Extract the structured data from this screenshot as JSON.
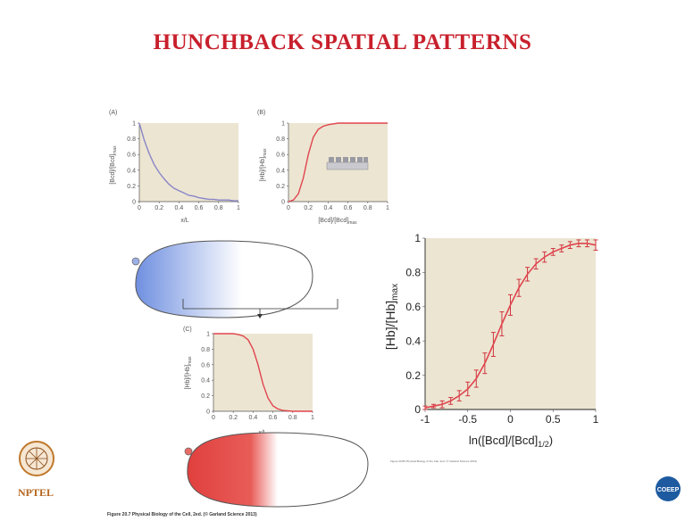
{
  "slide": {
    "title": "HUNCHBACK SPATIAL PATTERNS",
    "figure_caption": "Figure 20.7 Physical Biology of the Cell, 2ed. (© Garland Science 2013)",
    "small_caption": "Figure 20.8b Physical Biology of the Cell, 2ed. (© Garland Science 2013)",
    "logo_left_text": "NPTEL",
    "logo_right_text": "COEEP",
    "colors": {
      "title": "#c8202c",
      "panel_bg": "#ece5d2",
      "red_curve": "#e0454e",
      "blue_curve": "#8a86c8"
    }
  },
  "chart_data": [
    {
      "type": "line",
      "panel_label": "(A)",
      "xlabel": "x/L",
      "ylabel": "[Bcd]/[Bcd]max",
      "ylabel_main": "[Bcd]/[Bcd]",
      "ylabel_sub": "max",
      "xlim": [
        0,
        1
      ],
      "ylim": [
        0,
        1
      ],
      "xticks": [
        "0",
        "0.2",
        "0.4",
        "0.6",
        "0.8",
        "1"
      ],
      "yticks": [
        "0",
        "0.2",
        "0.4",
        "0.6",
        "0.8",
        "1"
      ],
      "series": [
        {
          "x": [
            0,
            0.05,
            0.1,
            0.15,
            0.2,
            0.25,
            0.3,
            0.35,
            0.4,
            0.45,
            0.5,
            0.55,
            0.6,
            0.65,
            0.7,
            0.75,
            0.8,
            0.85,
            0.9,
            0.95,
            1.0
          ],
          "y": [
            1.0,
            0.78,
            0.61,
            0.47,
            0.37,
            0.29,
            0.22,
            0.17,
            0.14,
            0.11,
            0.08,
            0.07,
            0.05,
            0.04,
            0.03,
            0.03,
            0.02,
            0.02,
            0.02,
            0.01,
            0.01
          ]
        }
      ]
    },
    {
      "type": "line",
      "panel_label": "(B)",
      "xlabel": "[Bcd]/[Bcd]max",
      "xlabel_main": "[Bcd]/[Bcd]",
      "xlabel_sub": "max",
      "ylabel": "[Hb]/[Hb]max",
      "ylabel_main": "[Hb]/[Hb]",
      "ylabel_sub": "max",
      "xlim": [
        0,
        1
      ],
      "ylim": [
        0,
        1
      ],
      "xticks": [
        "0",
        "0.2",
        "0.4",
        "0.6",
        "0.8",
        "1"
      ],
      "yticks": [
        "0",
        "0.2",
        "0.4",
        "0.6",
        "0.8",
        "1"
      ],
      "series": [
        {
          "x": [
            0,
            0.05,
            0.1,
            0.15,
            0.2,
            0.25,
            0.3,
            0.35,
            0.4,
            0.45,
            0.5,
            0.6,
            0.7,
            0.8,
            0.9,
            1.0
          ],
          "y": [
            0.0,
            0.02,
            0.1,
            0.3,
            0.6,
            0.82,
            0.92,
            0.96,
            0.98,
            0.99,
            1.0,
            1.0,
            1.0,
            1.0,
            1.0,
            1.0
          ]
        }
      ]
    },
    {
      "type": "line",
      "panel_label": "(C)",
      "xlabel": "x/L",
      "ylabel": "[Hb]/[Hb]max",
      "ylabel_main": "[Hb]/[Hb]",
      "ylabel_sub": "max",
      "xlim": [
        0,
        1
      ],
      "ylim": [
        0,
        1
      ],
      "xticks": [
        "0",
        "0.2",
        "0.4",
        "0.6",
        "0.8",
        "1"
      ],
      "yticks": [
        "0",
        "0.2",
        "0.4",
        "0.6",
        "0.8",
        "1"
      ],
      "series": [
        {
          "x": [
            0,
            0.1,
            0.2,
            0.25,
            0.3,
            0.35,
            0.4,
            0.45,
            0.5,
            0.55,
            0.6,
            0.65,
            0.7,
            0.8,
            0.9,
            1.0
          ],
          "y": [
            1.0,
            1.0,
            1.0,
            0.99,
            0.97,
            0.92,
            0.8,
            0.6,
            0.35,
            0.17,
            0.07,
            0.03,
            0.01,
            0.0,
            0.0,
            0.0
          ]
        }
      ]
    },
    {
      "type": "line",
      "xlabel": "ln([Bcd]/[Bcd]1/2)",
      "xlabel_main": "ln([Bcd]/[Bcd]",
      "xlabel_sub": "1/2",
      "xlabel_end": ")",
      "ylabel": "[Hb]/[Hb]max",
      "ylabel_main": "[Hb]/[Hb]",
      "ylabel_sub": "max",
      "xlim": [
        -1,
        1
      ],
      "ylim": [
        0,
        1
      ],
      "xticks": [
        "-1",
        "-0.5",
        "0",
        "0.5",
        "1"
      ],
      "yticks": [
        "0",
        "0.2",
        "0.4",
        "0.6",
        "0.8",
        "1"
      ],
      "series": [
        {
          "x": [
            -1,
            -0.9,
            -0.8,
            -0.7,
            -0.6,
            -0.5,
            -0.4,
            -0.3,
            -0.2,
            -0.1,
            0,
            0.1,
            0.2,
            0.3,
            0.4,
            0.5,
            0.6,
            0.7,
            0.8,
            0.9,
            1
          ],
          "y": [
            0.01,
            0.02,
            0.03,
            0.05,
            0.08,
            0.12,
            0.18,
            0.27,
            0.38,
            0.5,
            0.61,
            0.71,
            0.79,
            0.85,
            0.89,
            0.92,
            0.94,
            0.96,
            0.97,
            0.97,
            0.96
          ],
          "err": [
            0.01,
            0.01,
            0.02,
            0.02,
            0.03,
            0.04,
            0.05,
            0.06,
            0.07,
            0.07,
            0.06,
            0.05,
            0.04,
            0.03,
            0.03,
            0.02,
            0.02,
            0.02,
            0.02,
            0.02,
            0.03
          ]
        }
      ]
    }
  ]
}
